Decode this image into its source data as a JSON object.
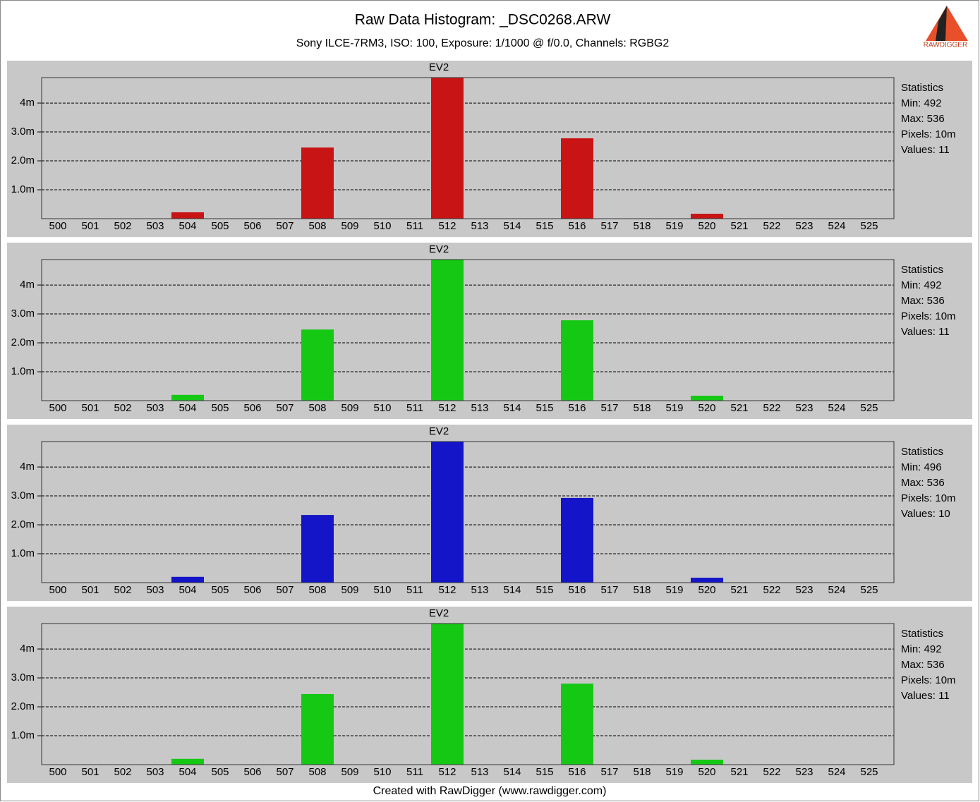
{
  "header": {
    "title": "Raw Data Histogram: _DSC0268.ARW",
    "subtitle": "Sony ILCE-7RM3, ISO: 100, Exposure: 1/1000 @ f/0.0, Channels: RGBG2",
    "logo": "RAWDIGGER"
  },
  "footer": "Created with RawDigger (www.rawdigger.com)",
  "chart_data": [
    {
      "type": "bar",
      "title": "EV2",
      "color": "#c81414",
      "categories": [
        500,
        501,
        502,
        503,
        504,
        505,
        506,
        507,
        508,
        509,
        510,
        511,
        512,
        513,
        514,
        515,
        516,
        517,
        518,
        519,
        520,
        521,
        522,
        523,
        524,
        525
      ],
      "values": [
        0,
        0,
        0,
        0,
        220000,
        0,
        0,
        0,
        2460000,
        0,
        0,
        0,
        4880000,
        0,
        0,
        0,
        2780000,
        0,
        0,
        0,
        170000,
        0,
        0,
        0,
        0,
        0
      ],
      "ylim": [
        0,
        4880000
      ],
      "yticks": [
        {
          "value": 1000000,
          "label": "1.0m"
        },
        {
          "value": 2000000,
          "label": "2.0m"
        },
        {
          "value": 3000000,
          "label": "3.0m"
        },
        {
          "value": 4000000,
          "label": "4m"
        }
      ],
      "grid": true,
      "stats": [
        "Statistics",
        "Min: 492",
        "Max: 536",
        "Pixels: 10m",
        "Values: 11"
      ]
    },
    {
      "type": "bar",
      "title": "EV2",
      "color": "#14c814",
      "categories": [
        500,
        501,
        502,
        503,
        504,
        505,
        506,
        507,
        508,
        509,
        510,
        511,
        512,
        513,
        514,
        515,
        516,
        517,
        518,
        519,
        520,
        521,
        522,
        523,
        524,
        525
      ],
      "values": [
        0,
        0,
        0,
        0,
        200000,
        0,
        0,
        0,
        2460000,
        0,
        0,
        0,
        4880000,
        0,
        0,
        0,
        2780000,
        0,
        0,
        0,
        170000,
        0,
        0,
        0,
        0,
        0
      ],
      "ylim": [
        0,
        4880000
      ],
      "yticks": [
        {
          "value": 1000000,
          "label": "1.0m"
        },
        {
          "value": 2000000,
          "label": "2.0m"
        },
        {
          "value": 3000000,
          "label": "3.0m"
        },
        {
          "value": 4000000,
          "label": "4m"
        }
      ],
      "grid": true,
      "stats": [
        "Statistics",
        "Min: 492",
        "Max: 536",
        "Pixels: 10m",
        "Values: 11"
      ]
    },
    {
      "type": "bar",
      "title": "EV2",
      "color": "#1414c8",
      "categories": [
        500,
        501,
        502,
        503,
        504,
        505,
        506,
        507,
        508,
        509,
        510,
        511,
        512,
        513,
        514,
        515,
        516,
        517,
        518,
        519,
        520,
        521,
        522,
        523,
        524,
        525
      ],
      "values": [
        0,
        0,
        0,
        0,
        200000,
        0,
        0,
        0,
        2340000,
        0,
        0,
        0,
        4880000,
        0,
        0,
        0,
        2930000,
        0,
        0,
        0,
        170000,
        0,
        0,
        0,
        0,
        0
      ],
      "ylim": [
        0,
        4880000
      ],
      "yticks": [
        {
          "value": 1000000,
          "label": "1.0m"
        },
        {
          "value": 2000000,
          "label": "2.0m"
        },
        {
          "value": 3000000,
          "label": "3.0m"
        },
        {
          "value": 4000000,
          "label": "4m"
        }
      ],
      "grid": true,
      "stats": [
        "Statistics",
        "Min: 496",
        "Max: 536",
        "Pixels: 10m",
        "Values: 10"
      ]
    },
    {
      "type": "bar",
      "title": "EV2",
      "color": "#14c814",
      "categories": [
        500,
        501,
        502,
        503,
        504,
        505,
        506,
        507,
        508,
        509,
        510,
        511,
        512,
        513,
        514,
        515,
        516,
        517,
        518,
        519,
        520,
        521,
        522,
        523,
        524,
        525
      ],
      "values": [
        0,
        0,
        0,
        0,
        200000,
        0,
        0,
        0,
        2440000,
        0,
        0,
        0,
        4880000,
        0,
        0,
        0,
        2800000,
        0,
        0,
        0,
        170000,
        0,
        0,
        0,
        0,
        0
      ],
      "ylim": [
        0,
        4880000
      ],
      "yticks": [
        {
          "value": 1000000,
          "label": "1.0m"
        },
        {
          "value": 2000000,
          "label": "2.0m"
        },
        {
          "value": 3000000,
          "label": "3.0m"
        },
        {
          "value": 4000000,
          "label": "4m"
        }
      ],
      "grid": true,
      "stats": [
        "Statistics",
        "Min: 492",
        "Max: 536",
        "Pixels: 10m",
        "Values: 11"
      ]
    }
  ]
}
